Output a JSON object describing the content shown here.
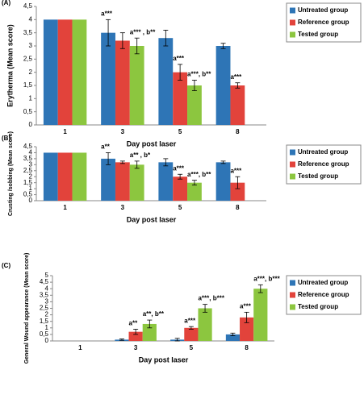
{
  "chart_data": [
    {
      "type": "bar",
      "label": "(A)",
      "ylabel": "Erytherma (Mean score)",
      "xlabel": "Day post laser",
      "categories": [
        "1",
        "3",
        "5",
        "8"
      ],
      "ylim": [
        0,
        4.5
      ],
      "yticks": [
        0,
        {
          "value": 0.5,
          "label": "0,5"
        },
        1,
        {
          "value": 1.5,
          "label": "1,5"
        },
        2,
        {
          "value": 2.5,
          "label": "2,5"
        },
        3,
        {
          "value": 3.5,
          "label": "3,5"
        },
        4,
        {
          "value": 4.5,
          "label": "4,5"
        }
      ],
      "series": [
        {
          "name": "Untreated group",
          "color": "#2e75b6",
          "values": [
            4,
            3.5,
            3.3,
            3
          ],
          "errors": [
            0,
            0.5,
            0.3,
            0.1
          ]
        },
        {
          "name": "Reference group",
          "color": "#e2433b",
          "values": [
            4,
            3.2,
            2,
            1.5
          ],
          "errors": [
            0,
            0.3,
            0.3,
            0.1
          ]
        },
        {
          "name": "Tested group",
          "color": "#8cc63f",
          "values": [
            4,
            3,
            1.5,
            null
          ],
          "errors": [
            0,
            0.3,
            0.2,
            null
          ]
        }
      ],
      "annotations": [
        {
          "text": "a***",
          "x": "3",
          "series": "Untreated group"
        },
        {
          "text": "a*** , b**",
          "x": "3",
          "series": "Tested group"
        },
        {
          "text": "a***",
          "x": "5",
          "series": "Reference group"
        },
        {
          "text": "a***, b**",
          "x": "5",
          "series": "Tested group"
        },
        {
          "text": "a***",
          "x": "8",
          "series": "Reference group"
        }
      ]
    },
    {
      "type": "bar",
      "label": "(B)",
      "ylabel": "Crusting /sobbing (Mean score)",
      "xlabel": "Day post laser",
      "categories": [
        "1",
        "3",
        "5",
        "8"
      ],
      "ylim": [
        0,
        4.5
      ],
      "yticks": [
        0,
        {
          "value": 0.5,
          "label": "0,5"
        },
        1,
        {
          "value": 1.5,
          "label": "1,5"
        },
        2,
        {
          "value": 2.5,
          "label": "2,5"
        },
        3,
        {
          "value": 3.5,
          "label": "3,5"
        },
        4,
        {
          "value": 4.5,
          "label": "4,5"
        }
      ],
      "series": [
        {
          "name": "Untreated group",
          "color": "#2e75b6",
          "values": [
            4,
            3.5,
            3.2,
            3.2
          ],
          "errors": [
            0,
            0.5,
            0.3,
            0.1
          ]
        },
        {
          "name": "Reference group",
          "color": "#e2433b",
          "values": [
            4,
            3.2,
            2,
            1.5
          ],
          "errors": [
            0,
            0.1,
            0.2,
            0.5
          ]
        },
        {
          "name": "Tested group",
          "color": "#8cc63f",
          "values": [
            4,
            3,
            1.5,
            null
          ],
          "errors": [
            0,
            0.3,
            0.2,
            null
          ]
        }
      ],
      "annotations": [
        {
          "text": "a**",
          "x": "3",
          "series": "Untreated group"
        },
        {
          "text": "a** , b*",
          "x": "3",
          "series": "Tested group"
        },
        {
          "text": "a***",
          "x": "5",
          "series": "Reference group"
        },
        {
          "text": "a***, b**",
          "x": "5",
          "series": "Tested group"
        },
        {
          "text": "a***",
          "x": "8",
          "series": "Reference group"
        }
      ]
    },
    {
      "type": "bar",
      "label": "(C)",
      "ylabel": "General Wound appearance (Mean score)",
      "xlabel": "Day post laser",
      "categories": [
        "1",
        "3",
        "5",
        "8"
      ],
      "ylim": [
        0,
        5
      ],
      "yticks": [
        0,
        {
          "value": 0.5,
          "label": "0,5"
        },
        1,
        {
          "value": 1.5,
          "label": "1,5"
        },
        2,
        {
          "value": 2.5,
          "label": "2,5"
        },
        3,
        {
          "value": 3.5,
          "label": "3,5"
        },
        4,
        {
          "value": 4.5,
          "label": "4,5"
        },
        5
      ],
      "series": [
        {
          "name": "Untreated group",
          "color": "#2e75b6",
          "values": [
            0,
            0.1,
            0.1,
            0.5
          ],
          "errors": [
            0,
            0.05,
            0.1,
            0.1
          ]
        },
        {
          "name": "Reference group",
          "color": "#e2433b",
          "values": [
            0,
            0.7,
            1,
            1.8
          ],
          "errors": [
            0,
            0.2,
            0.1,
            0.4
          ]
        },
        {
          "name": "Tested group",
          "color": "#8cc63f",
          "values": [
            0,
            1.3,
            2.5,
            4
          ],
          "errors": [
            0,
            0.3,
            0.3,
            0.3
          ]
        }
      ],
      "annotations": [
        {
          "text": "a**",
          "x": "3",
          "series": "Reference group"
        },
        {
          "text": "a**, b**",
          "x": "3",
          "series": "Tested group"
        },
        {
          "text": "a***",
          "x": "5",
          "series": "Reference group"
        },
        {
          "text": "a***, b***",
          "x": "5",
          "series": "Tested group"
        },
        {
          "text": "a***",
          "x": "8",
          "series": "Reference group"
        },
        {
          "text": "a***, b***",
          "x": "8",
          "series": "Tested group"
        }
      ]
    }
  ]
}
